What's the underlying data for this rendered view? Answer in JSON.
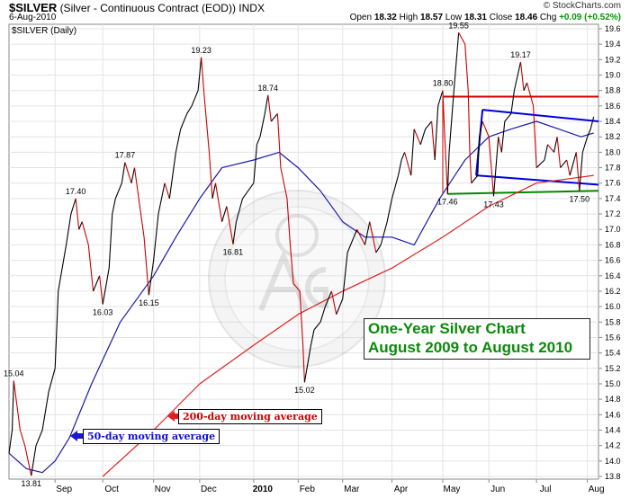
{
  "header": {
    "symbol": "$SILVER",
    "description": "(Silver - Continuous Contract (EOD))",
    "exchange": "INDX",
    "date": "6-Aug-2010",
    "brand": "© StockCharts.com",
    "ohlc": {
      "open_label": "Open",
      "open": "18.32",
      "high_label": "High",
      "high": "18.57",
      "low_label": "Low",
      "low": "18.31",
      "close_label": "Close",
      "close": "18.46",
      "chg_label": "Chg",
      "chg": "+0.09 (+0.52%)"
    }
  },
  "panel_label": "$SILVER (Daily)",
  "annotations": {
    "ma200": "200-day moving average",
    "ma50": "50-day moving average",
    "title_line1": "One-Year Silver Chart",
    "title_line2": "August 2009 to August 2010"
  },
  "colors": {
    "price_up": "#000000",
    "price_down": "#cc0000",
    "ma50": "#1a1aaa",
    "ma200": "#e02020",
    "resistance": "#cc0000",
    "channel": "#0000dd",
    "support": "#008800",
    "title_text": "#0a8a0a"
  },
  "chart_data": {
    "type": "line",
    "ylim": [
      13.8,
      19.6
    ],
    "yticks": [
      13.8,
      14.0,
      14.2,
      14.4,
      14.6,
      14.8,
      15.0,
      15.2,
      15.4,
      15.6,
      15.8,
      16.0,
      16.2,
      16.4,
      16.6,
      16.8,
      17.0,
      17.2,
      17.4,
      17.6,
      17.8,
      18.0,
      18.2,
      18.4,
      18.6,
      18.8,
      19.0,
      19.2,
      19.4,
      19.6
    ],
    "xlim": [
      "2009-08-03",
      "2010-08-09"
    ],
    "month_labels": [
      {
        "label": "Sep",
        "date": "2009-09-01"
      },
      {
        "label": "Oct",
        "date": "2009-10-01"
      },
      {
        "label": "Nov",
        "date": "2009-11-02"
      },
      {
        "label": "Dec",
        "date": "2009-12-01"
      },
      {
        "label": "2010",
        "date": "2010-01-04",
        "bold": true
      },
      {
        "label": "Feb",
        "date": "2010-02-01"
      },
      {
        "label": "Mar",
        "date": "2010-03-01"
      },
      {
        "label": "Apr",
        "date": "2010-04-01"
      },
      {
        "label": "May",
        "date": "2010-05-03"
      },
      {
        "label": "Jun",
        "date": "2010-06-01"
      },
      {
        "label": "Jul",
        "date": "2010-07-01"
      },
      {
        "label": "Aug",
        "date": "2010-08-02"
      }
    ],
    "series": [
      {
        "key": "price",
        "values": [
          [
            "2009-08-03",
            14.1
          ],
          [
            "2009-08-05",
            14.4
          ],
          [
            "2009-08-06",
            15.04
          ],
          [
            "2009-08-10",
            14.4
          ],
          [
            "2009-08-13",
            14.2
          ],
          [
            "2009-08-17",
            13.81
          ],
          [
            "2009-08-20",
            14.2
          ],
          [
            "2009-08-24",
            14.4
          ],
          [
            "2009-08-28",
            14.9
          ],
          [
            "2009-09-01",
            15.2
          ],
          [
            "2009-09-03",
            16.2
          ],
          [
            "2009-09-08",
            16.8
          ],
          [
            "2009-09-11",
            17.2
          ],
          [
            "2009-09-14",
            17.4
          ],
          [
            "2009-09-16",
            17.0
          ],
          [
            "2009-09-18",
            17.1
          ],
          [
            "2009-09-22",
            16.8
          ],
          [
            "2009-09-25",
            16.2
          ],
          [
            "2009-09-29",
            16.4
          ],
          [
            "2009-10-01",
            16.03
          ],
          [
            "2009-10-05",
            16.5
          ],
          [
            "2009-10-07",
            17.2
          ],
          [
            "2009-10-09",
            17.4
          ],
          [
            "2009-10-13",
            17.6
          ],
          [
            "2009-10-15",
            17.87
          ],
          [
            "2009-10-19",
            17.6
          ],
          [
            "2009-10-21",
            17.8
          ],
          [
            "2009-10-23",
            17.5
          ],
          [
            "2009-10-27",
            16.9
          ],
          [
            "2009-10-30",
            16.15
          ],
          [
            "2009-11-02",
            16.6
          ],
          [
            "2009-11-05",
            17.2
          ],
          [
            "2009-11-09",
            17.6
          ],
          [
            "2009-11-12",
            17.4
          ],
          [
            "2009-11-16",
            18.0
          ],
          [
            "2009-11-19",
            18.3
          ],
          [
            "2009-11-23",
            18.5
          ],
          [
            "2009-11-26",
            18.6
          ],
          [
            "2009-11-30",
            18.8
          ],
          [
            "2009-12-02",
            19.23
          ],
          [
            "2009-12-04",
            18.7
          ],
          [
            "2009-12-07",
            18.0
          ],
          [
            "2009-12-09",
            17.4
          ],
          [
            "2009-12-11",
            17.6
          ],
          [
            "2009-12-15",
            17.1
          ],
          [
            "2009-12-18",
            17.3
          ],
          [
            "2009-12-22",
            16.81
          ],
          [
            "2009-12-24",
            17.1
          ],
          [
            "2009-12-28",
            17.4
          ],
          [
            "2010-01-04",
            17.6
          ],
          [
            "2010-01-06",
            18.1
          ],
          [
            "2010-01-08",
            18.2
          ],
          [
            "2010-01-11",
            18.5
          ],
          [
            "2010-01-13",
            18.74
          ],
          [
            "2010-01-15",
            18.4
          ],
          [
            "2010-01-19",
            18.5
          ],
          [
            "2010-01-21",
            17.8
          ],
          [
            "2010-01-25",
            17.4
          ],
          [
            "2010-01-27",
            16.8
          ],
          [
            "2010-01-29",
            16.3
          ],
          [
            "2010-02-02",
            16.2
          ],
          [
            "2010-02-04",
            15.5
          ],
          [
            "2010-02-05",
            15.02
          ],
          [
            "2010-02-09",
            15.5
          ],
          [
            "2010-02-11",
            15.7
          ],
          [
            "2010-02-15",
            15.8
          ],
          [
            "2010-02-18",
            16.0
          ],
          [
            "2010-02-22",
            16.2
          ],
          [
            "2010-02-25",
            15.9
          ],
          [
            "2010-03-01",
            16.1
          ],
          [
            "2010-03-04",
            16.7
          ],
          [
            "2010-03-08",
            16.9
          ],
          [
            "2010-03-10",
            17.0
          ],
          [
            "2010-03-15",
            16.8
          ],
          [
            "2010-03-18",
            17.1
          ],
          [
            "2010-03-22",
            16.7
          ],
          [
            "2010-03-25",
            16.8
          ],
          [
            "2010-03-29",
            17.1
          ],
          [
            "2010-04-01",
            17.4
          ],
          [
            "2010-04-05",
            17.7
          ],
          [
            "2010-04-07",
            17.9
          ],
          [
            "2010-04-09",
            18.0
          ],
          [
            "2010-04-13",
            17.7
          ],
          [
            "2010-04-15",
            18.3
          ],
          [
            "2010-04-19",
            18.1
          ],
          [
            "2010-04-22",
            18.3
          ],
          [
            "2010-04-26",
            18.4
          ],
          [
            "2010-04-28",
            17.9
          ],
          [
            "2010-04-30",
            18.6
          ],
          [
            "2010-05-03",
            18.8
          ],
          [
            "2010-05-04",
            18.3
          ],
          [
            "2010-05-06",
            17.46
          ],
          [
            "2010-05-07",
            18.0
          ],
          [
            "2010-05-10",
            18.8
          ],
          [
            "2010-05-12",
            19.3
          ],
          [
            "2010-05-13",
            19.55
          ],
          [
            "2010-05-17",
            19.4
          ],
          [
            "2010-05-19",
            18.8
          ],
          [
            "2010-05-20",
            18.0
          ],
          [
            "2010-05-21",
            17.6
          ],
          [
            "2010-05-25",
            17.7
          ],
          [
            "2010-05-26",
            18.2
          ],
          [
            "2010-05-28",
            18.4
          ],
          [
            "2010-06-01",
            18.2
          ],
          [
            "2010-06-04",
            17.43
          ],
          [
            "2010-06-07",
            18.2
          ],
          [
            "2010-06-09",
            18.0
          ],
          [
            "2010-06-11",
            18.4
          ],
          [
            "2010-06-15",
            18.5
          ],
          [
            "2010-06-17",
            18.8
          ],
          [
            "2010-06-21",
            19.17
          ],
          [
            "2010-06-23",
            18.8
          ],
          [
            "2010-06-25",
            18.9
          ],
          [
            "2010-06-29",
            18.6
          ],
          [
            "2010-07-01",
            17.8
          ],
          [
            "2010-07-06",
            17.9
          ],
          [
            "2010-07-08",
            18.1
          ],
          [
            "2010-07-12",
            18.0
          ],
          [
            "2010-07-14",
            18.2
          ],
          [
            "2010-07-16",
            17.8
          ],
          [
            "2010-07-20",
            17.9
          ],
          [
            "2010-07-22",
            17.7
          ],
          [
            "2010-07-26",
            18.0
          ],
          [
            "2010-07-28",
            17.5
          ],
          [
            "2010-07-30",
            18.0
          ],
          [
            "2010-08-02",
            18.2
          ],
          [
            "2010-08-04",
            18.3
          ],
          [
            "2010-08-06",
            18.46
          ]
        ]
      },
      {
        "key": "ma50",
        "values": [
          [
            "2009-08-03",
            14.1
          ],
          [
            "2009-08-14",
            13.9
          ],
          [
            "2009-08-24",
            13.85
          ],
          [
            "2009-09-01",
            14.0
          ],
          [
            "2009-09-10",
            14.3
          ],
          [
            "2009-09-24",
            15.0
          ],
          [
            "2009-10-12",
            15.8
          ],
          [
            "2009-11-02",
            16.4
          ],
          [
            "2009-11-16",
            16.9
          ],
          [
            "2009-12-01",
            17.4
          ],
          [
            "2009-12-15",
            17.8
          ],
          [
            "2010-01-04",
            17.9
          ],
          [
            "2010-01-20",
            18.0
          ],
          [
            "2010-02-01",
            17.8
          ],
          [
            "2010-02-15",
            17.5
          ],
          [
            "2010-03-01",
            17.1
          ],
          [
            "2010-03-15",
            16.9
          ],
          [
            "2010-04-01",
            16.9
          ],
          [
            "2010-04-15",
            16.8
          ],
          [
            "2010-05-01",
            17.4
          ],
          [
            "2010-05-17",
            17.9
          ],
          [
            "2010-06-01",
            18.2
          ],
          [
            "2010-06-15",
            18.3
          ],
          [
            "2010-07-01",
            18.4
          ],
          [
            "2010-07-15",
            18.3
          ],
          [
            "2010-07-29",
            18.2
          ],
          [
            "2010-08-06",
            18.25
          ]
        ]
      },
      {
        "key": "ma200",
        "values": [
          [
            "2009-10-01",
            13.8
          ],
          [
            "2009-11-02",
            14.4
          ],
          [
            "2009-12-01",
            15.0
          ],
          [
            "2010-01-04",
            15.5
          ],
          [
            "2010-02-01",
            15.9
          ],
          [
            "2010-03-01",
            16.2
          ],
          [
            "2010-04-01",
            16.5
          ],
          [
            "2010-05-03",
            16.9
          ],
          [
            "2010-06-01",
            17.3
          ],
          [
            "2010-07-01",
            17.6
          ],
          [
            "2010-08-06",
            17.7
          ]
        ]
      }
    ],
    "trendlines": [
      {
        "key": "resistance",
        "from": [
          "2010-05-03",
          18.72
        ],
        "to": [
          "2010-08-09",
          18.72
        ]
      },
      {
        "key": "channel_top",
        "from": [
          "2010-05-28",
          18.55
        ],
        "to": [
          "2010-08-09",
          18.4
        ]
      },
      {
        "key": "channel_bottom",
        "from": [
          "2010-05-24",
          17.7
        ],
        "to": [
          "2010-08-09",
          17.58
        ]
      },
      {
        "key": "support",
        "from": [
          "2010-05-06",
          17.46
        ],
        "to": [
          "2010-08-09",
          17.5
        ]
      }
    ],
    "labeled_points": [
      {
        "date": "2009-08-06",
        "value": 15.04,
        "text": "15.04",
        "pos": "above"
      },
      {
        "date": "2009-08-17",
        "value": 13.81,
        "text": "13.81",
        "pos": "below"
      },
      {
        "date": "2009-09-14",
        "value": 17.4,
        "text": "17.40",
        "pos": "above"
      },
      {
        "date": "2009-10-01",
        "value": 16.03,
        "text": "16.03",
        "pos": "below"
      },
      {
        "date": "2009-10-15",
        "value": 17.87,
        "text": "17.87",
        "pos": "above"
      },
      {
        "date": "2009-10-30",
        "value": 16.15,
        "text": "16.15",
        "pos": "below"
      },
      {
        "date": "2009-12-02",
        "value": 19.23,
        "text": "19.23",
        "pos": "above"
      },
      {
        "date": "2009-12-22",
        "value": 16.81,
        "text": "16.81",
        "pos": "below"
      },
      {
        "date": "2010-01-13",
        "value": 18.74,
        "text": "18.74",
        "pos": "above"
      },
      {
        "date": "2010-02-05",
        "value": 15.02,
        "text": "15.02",
        "pos": "below"
      },
      {
        "date": "2010-05-03",
        "value": 18.8,
        "text": "18.80",
        "pos": "above"
      },
      {
        "date": "2010-05-06",
        "value": 17.46,
        "text": "17.46",
        "pos": "below"
      },
      {
        "date": "2010-05-13",
        "value": 19.55,
        "text": "19.55",
        "pos": "above"
      },
      {
        "date": "2010-06-04",
        "value": 17.43,
        "text": "17.43",
        "pos": "below"
      },
      {
        "date": "2010-06-21",
        "value": 19.17,
        "text": "19.17",
        "pos": "above"
      },
      {
        "date": "2010-07-28",
        "value": 17.5,
        "text": "17.50",
        "pos": "below"
      }
    ],
    "grid": true
  }
}
